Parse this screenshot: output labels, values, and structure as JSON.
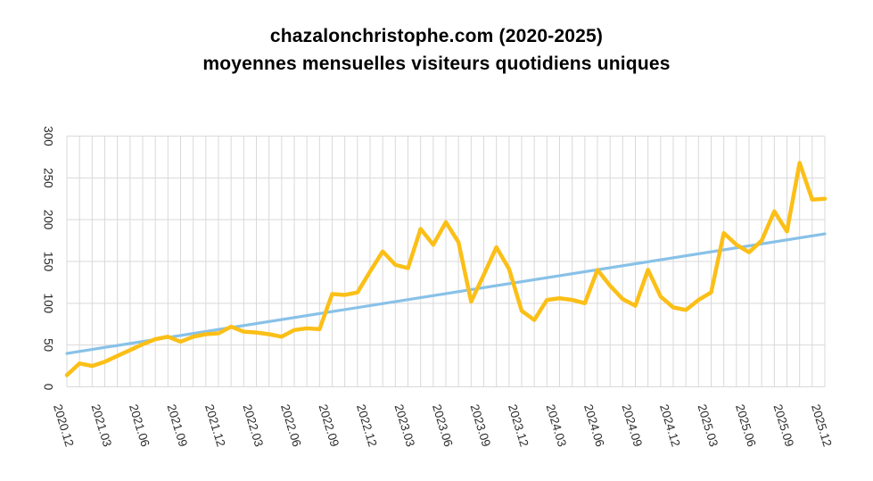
{
  "header": {
    "title_line1": "chazalonchristophe.com (2020-2025)",
    "title_line2": "moyennes mensuelles visiteurs quotidiens uniques"
  },
  "chart_data": {
    "type": "line",
    "title": "chazalonchristophe.com (2020-2025)",
    "subtitle": "moyennes mensuelles visiteurs quotidiens uniques",
    "xlabel": "",
    "ylabel": "",
    "legend": "none",
    "grid": true,
    "ylim": [
      0,
      300
    ],
    "y_ticks": [
      0,
      50,
      100,
      150,
      200,
      250,
      300
    ],
    "x": [
      "2020.12",
      "2021.01",
      "2021.02",
      "2021.03",
      "2021.04",
      "2021.05",
      "2021.06",
      "2021.07",
      "2021.08",
      "2021.09",
      "2021.10",
      "2021.11",
      "2021.12",
      "2022.01",
      "2022.02",
      "2022.03",
      "2022.04",
      "2022.05",
      "2022.06",
      "2022.07",
      "2022.08",
      "2022.09",
      "2022.10",
      "2022.11",
      "2022.12",
      "2023.01",
      "2023.02",
      "2023.03",
      "2023.04",
      "2023.05",
      "2023.06",
      "2023.07",
      "2023.08",
      "2023.09",
      "2023.10",
      "2023.11",
      "2023.12",
      "2024.01",
      "2024.02",
      "2024.03",
      "2024.04",
      "2024.05",
      "2024.06",
      "2024.07",
      "2024.08",
      "2024.09",
      "2024.10",
      "2024.11",
      "2024.12",
      "2025.01",
      "2025.02",
      "2025.03",
      "2025.04",
      "2025.05",
      "2025.06",
      "2025.07",
      "2025.08",
      "2025.09",
      "2025.10",
      "2025.11",
      "2025.12"
    ],
    "x_tick_labels": [
      "2020.12",
      "2021.03",
      "2021.06",
      "2021.09",
      "2021.12",
      "2022.03",
      "2022.06",
      "2022.09",
      "2022.12",
      "2023.03",
      "2023.06",
      "2023.09",
      "2023.12",
      "2024.03",
      "2024.06",
      "2024.09",
      "2024.12",
      "2025.03",
      "2025.06",
      "2025.09",
      "2025.12"
    ],
    "x_tick_step": 3,
    "series": [
      {
        "id": "monthly_unique_daily_visitors",
        "kind": "data",
        "color": "#FBBF17",
        "values": [
          14,
          28,
          25,
          30,
          37,
          44,
          51,
          57,
          60,
          54,
          60,
          63,
          64,
          72,
          66,
          65,
          63,
          60,
          68,
          70,
          69,
          111,
          110,
          113,
          138,
          162,
          146,
          142,
          189,
          170,
          197,
          173,
          102,
          134,
          167,
          141,
          91,
          80,
          104,
          106,
          104,
          100,
          140,
          121,
          105,
          97,
          140,
          108,
          95,
          92,
          104,
          113,
          184,
          170,
          161,
          175,
          210,
          186,
          268,
          224,
          225
        ]
      },
      {
        "id": "linear_trend",
        "kind": "trend",
        "color": "#88C1E8",
        "start": 40,
        "end": 183
      }
    ],
    "grid_color": "#D9D9D9",
    "tick_color": "#2B2B2B"
  }
}
